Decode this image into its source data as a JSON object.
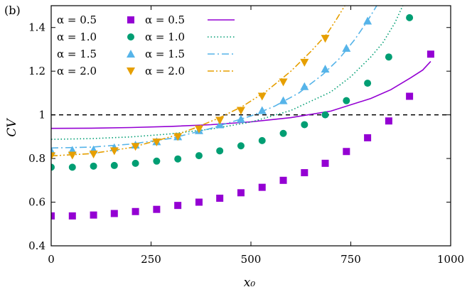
{
  "chart_data": {
    "type": "scatter",
    "panel_label": "(b)",
    "xlabel": "x₀",
    "ylabel": "CV",
    "xlim": [
      0,
      1000
    ],
    "ylim": [
      0.4,
      1.5
    ],
    "xticks": [
      0,
      250,
      500,
      750,
      1000
    ],
    "xtick_labels": [
      "0",
      "250",
      "500",
      "750",
      "1000"
    ],
    "yticks": [
      0.4,
      0.6,
      0.8,
      1.0,
      1.2,
      1.4
    ],
    "ytick_labels": [
      "0.4",
      "0.6",
      "0.8",
      "1",
      "1.2",
      "1.4"
    ],
    "reference_line": {
      "y": 1.0,
      "style": "dashed",
      "color": "#000000"
    },
    "legend": {
      "placement": "top-left",
      "marker_entries": [
        "α = 0.5",
        "α = 1.0",
        "α = 1.5",
        "α = 2.0"
      ],
      "line_entries": [
        "α = 0.5",
        "α = 1.0",
        "α = 1.5",
        "α = 2.0"
      ]
    },
    "series": [
      {
        "name": "α = 0.5",
        "kind": "markers",
        "marker": "square",
        "color": "#9400d3",
        "x": [
          0,
          53,
          106,
          158,
          211,
          264,
          317,
          370,
          422,
          475,
          528,
          581,
          634,
          686,
          739,
          792,
          845,
          897,
          950
        ],
        "y": [
          0.537,
          0.537,
          0.541,
          0.548,
          0.557,
          0.567,
          0.585,
          0.6,
          0.618,
          0.643,
          0.668,
          0.7,
          0.735,
          0.778,
          0.832,
          0.895,
          0.972,
          1.085,
          1.278
        ]
      },
      {
        "name": "α = 1.0",
        "kind": "markers",
        "marker": "circle",
        "color": "#009e73",
        "x": [
          0,
          53,
          106,
          158,
          211,
          264,
          317,
          370,
          422,
          475,
          528,
          581,
          634,
          686,
          739,
          792,
          845,
          897
        ],
        "y": [
          0.76,
          0.76,
          0.765,
          0.768,
          0.778,
          0.788,
          0.798,
          0.813,
          0.835,
          0.858,
          0.882,
          0.915,
          0.955,
          1.0,
          1.065,
          1.145,
          1.265,
          1.445
        ]
      },
      {
        "name": "α = 1.5",
        "kind": "markers",
        "marker": "triangle-up",
        "color": "#56b4e9",
        "x": [
          0,
          53,
          106,
          158,
          211,
          264,
          317,
          370,
          422,
          475,
          528,
          581,
          634,
          686,
          739,
          792
        ],
        "y": [
          0.835,
          0.838,
          0.84,
          0.85,
          0.862,
          0.877,
          0.9,
          0.928,
          0.955,
          0.98,
          1.02,
          1.065,
          1.13,
          1.21,
          1.305,
          1.43
        ]
      },
      {
        "name": "α = 2.0",
        "kind": "markers",
        "marker": "triangle-down",
        "color": "#e69f00",
        "x": [
          0,
          53,
          106,
          158,
          211,
          264,
          317,
          370,
          422,
          475,
          528,
          581,
          634,
          686
        ],
        "y": [
          0.812,
          0.815,
          0.82,
          0.835,
          0.855,
          0.875,
          0.9,
          0.935,
          0.975,
          1.02,
          1.085,
          1.15,
          1.24,
          1.35
        ]
      },
      {
        "name": "α = 0.5",
        "kind": "line",
        "dash": "solid",
        "color": "#9400d3",
        "x": [
          0,
          100,
          200,
          300,
          400,
          500,
          600,
          700,
          800,
          850,
          900,
          930,
          950
        ],
        "y": [
          0.938,
          0.939,
          0.942,
          0.947,
          0.955,
          0.968,
          0.987,
          1.017,
          1.075,
          1.115,
          1.17,
          1.205,
          1.245
        ]
      },
      {
        "name": "α = 1.0",
        "kind": "line",
        "dash": "dotted",
        "color": "#009e73",
        "x": [
          0,
          100,
          200,
          300,
          400,
          500,
          600,
          700,
          750,
          800,
          830,
          860,
          880
        ],
        "y": [
          0.888,
          0.891,
          0.899,
          0.913,
          0.935,
          0.967,
          1.02,
          1.105,
          1.175,
          1.265,
          1.33,
          1.42,
          1.5
        ]
      },
      {
        "name": "α = 1.5",
        "kind": "line",
        "dash": "dashdot",
        "color": "#56b4e9",
        "x": [
          0,
          100,
          200,
          300,
          400,
          500,
          560,
          620,
          680,
          720,
          760,
          790,
          815
        ],
        "y": [
          0.848,
          0.852,
          0.866,
          0.892,
          0.938,
          0.995,
          1.04,
          1.1,
          1.185,
          1.255,
          1.345,
          1.425,
          1.5
        ]
      },
      {
        "name": "α = 2.0",
        "kind": "line",
        "dash": "dashdotdot",
        "color": "#e69f00",
        "x": [
          0,
          100,
          200,
          300,
          360,
          420,
          480,
          540,
          600,
          650,
          690,
          715,
          735
        ],
        "y": [
          0.812,
          0.822,
          0.85,
          0.9,
          0.94,
          0.985,
          1.04,
          1.11,
          1.2,
          1.29,
          1.37,
          1.44,
          1.5
        ]
      }
    ]
  }
}
